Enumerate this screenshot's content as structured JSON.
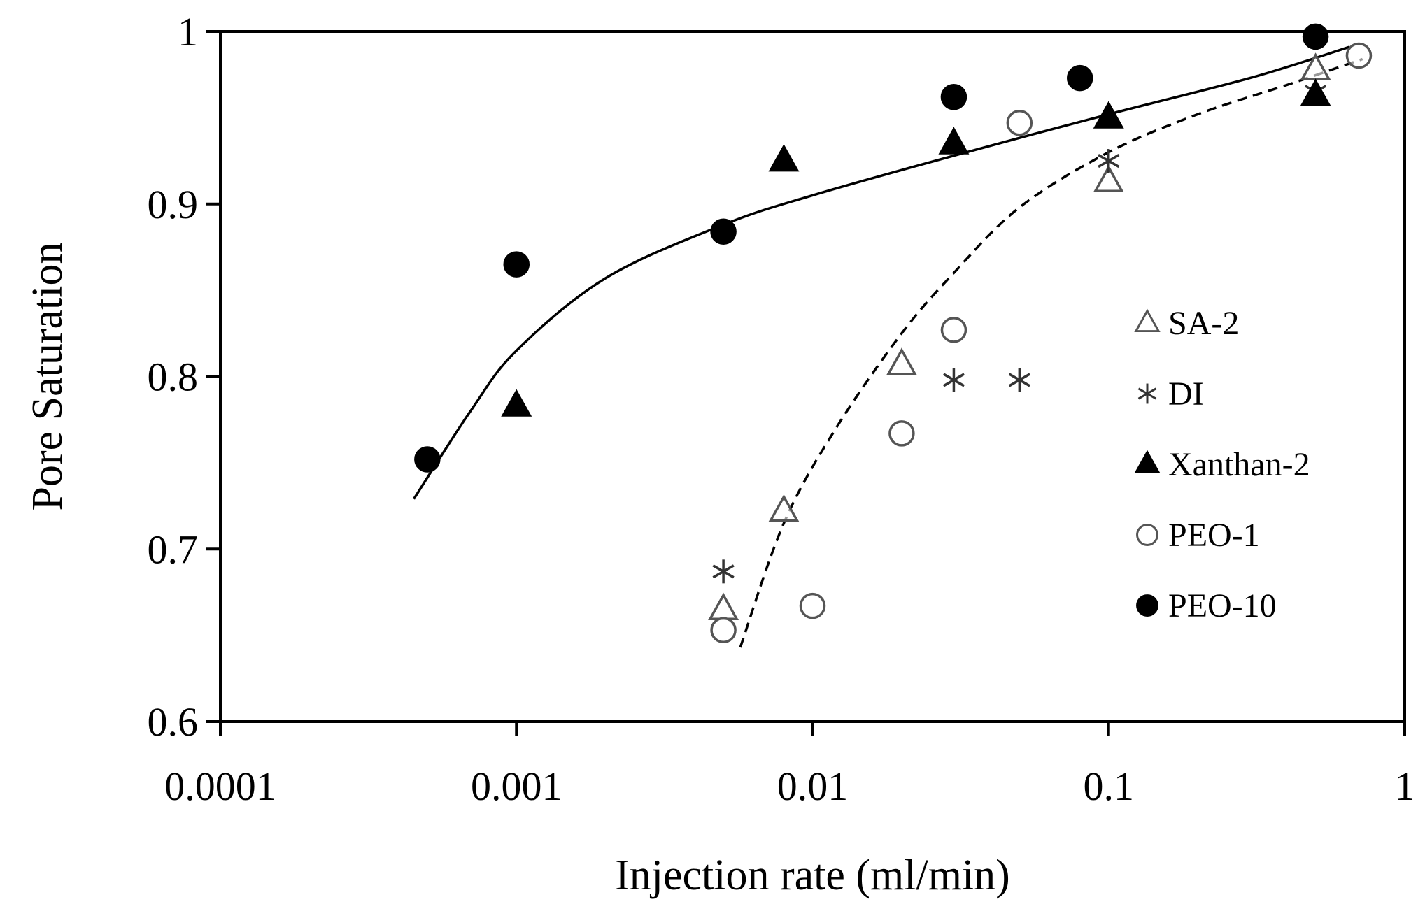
{
  "chart_data": {
    "type": "scatter",
    "title": "",
    "xlabel": "Injection rate (ml/min)",
    "ylabel": "Pore Saturation",
    "xscale": "log",
    "xlim": [
      0.0001,
      1
    ],
    "ylim": [
      0.6,
      1
    ],
    "xticks": [
      {
        "value": 0.0001,
        "label": "0.0001"
      },
      {
        "value": 0.001,
        "label": "0.001"
      },
      {
        "value": 0.01,
        "label": "0.01"
      },
      {
        "value": 0.1,
        "label": "0.1"
      },
      {
        "value": 1,
        "label": "1"
      }
    ],
    "yticks": [
      {
        "value": 0.6,
        "label": "0.6"
      },
      {
        "value": 0.7,
        "label": "0.7"
      },
      {
        "value": 0.8,
        "label": "0.8"
      },
      {
        "value": 0.9,
        "label": "0.9"
      },
      {
        "value": 1,
        "label": "1"
      }
    ],
    "grid": false,
    "legend_position": "right",
    "series": [
      {
        "name": "SA-2",
        "marker": "open-triangle",
        "points": [
          [
            0.005,
            0.665
          ],
          [
            0.008,
            0.722
          ],
          [
            0.02,
            0.807
          ],
          [
            0.1,
            0.913
          ],
          [
            0.5,
            0.978
          ]
        ]
      },
      {
        "name": "DI",
        "marker": "asterisk",
        "points": [
          [
            0.005,
            0.687
          ],
          [
            0.03,
            0.798
          ],
          [
            0.05,
            0.798
          ],
          [
            0.1,
            0.925
          ],
          [
            0.5,
            0.965
          ]
        ]
      },
      {
        "name": "Xanthan-2",
        "marker": "filled-triangle",
        "points": [
          [
            0.001,
            0.783
          ],
          [
            0.008,
            0.925
          ],
          [
            0.03,
            0.935
          ],
          [
            0.1,
            0.95
          ],
          [
            0.5,
            0.963
          ]
        ]
      },
      {
        "name": "PEO-1",
        "marker": "open-circle",
        "points": [
          [
            0.005,
            0.653
          ],
          [
            0.01,
            0.667
          ],
          [
            0.02,
            0.767
          ],
          [
            0.03,
            0.827
          ],
          [
            0.05,
            0.947
          ],
          [
            0.7,
            0.986
          ]
        ]
      },
      {
        "name": "PEO-10",
        "marker": "filled-circle",
        "points": [
          [
            0.0005,
            0.752
          ],
          [
            0.001,
            0.865
          ],
          [
            0.005,
            0.884
          ],
          [
            0.03,
            0.962
          ],
          [
            0.08,
            0.973
          ],
          [
            0.5,
            0.997
          ]
        ]
      }
    ],
    "fit_lines": [
      {
        "style": "solid",
        "points": [
          [
            0.00045,
            0.729
          ],
          [
            0.0007,
            0.78
          ],
          [
            0.001,
            0.815
          ],
          [
            0.002,
            0.857
          ],
          [
            0.005,
            0.888
          ],
          [
            0.01,
            0.905
          ],
          [
            0.03,
            0.928
          ],
          [
            0.1,
            0.952
          ],
          [
            0.3,
            0.973
          ],
          [
            0.65,
            0.991
          ]
        ]
      },
      {
        "style": "dashed",
        "points": [
          [
            0.0057,
            0.643
          ],
          [
            0.008,
            0.715
          ],
          [
            0.012,
            0.77
          ],
          [
            0.02,
            0.825
          ],
          [
            0.03,
            0.86
          ],
          [
            0.05,
            0.898
          ],
          [
            0.1,
            0.93
          ],
          [
            0.2,
            0.952
          ],
          [
            0.4,
            0.969
          ],
          [
            0.72,
            0.984
          ]
        ]
      }
    ]
  }
}
